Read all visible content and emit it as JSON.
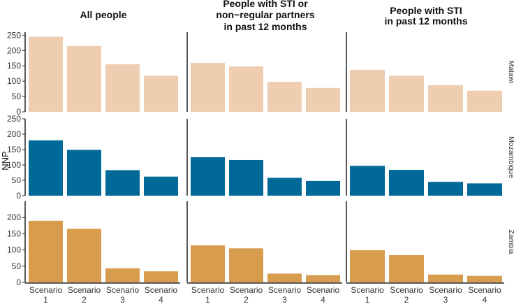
{
  "chart_data": {
    "type": "bar",
    "ylabel": "NNP",
    "columns": [
      "All people",
      "People with STI or non−regular partners in past 12 months",
      "People with STI in past 12 months"
    ],
    "column_title_lines": [
      [
        "All people"
      ],
      [
        "People with STI or",
        "non−regular partners",
        "in past 12 months"
      ],
      [
        "People with STI",
        "in past 12 months"
      ]
    ],
    "rows": [
      "Malawi",
      "Mozambique",
      "Zambia"
    ],
    "categories": [
      "Scenario 1",
      "Scenario 2",
      "Scenario 3",
      "Scenario 4"
    ],
    "category_lines": [
      [
        "Scenario",
        "1"
      ],
      [
        "Scenario",
        "2"
      ],
      [
        "Scenario",
        "3"
      ],
      [
        "Scenario",
        "4"
      ]
    ],
    "ylim": {
      "Malawi": [
        0,
        260
      ],
      "Mozambique": [
        0,
        250
      ],
      "Zambia": [
        0,
        250
      ]
    },
    "yticks": {
      "Malawi": [
        0,
        50,
        100,
        150,
        200,
        250
      ],
      "Mozambique": [
        0,
        50,
        100,
        150,
        200,
        250
      ],
      "Zambia": [
        0,
        50,
        100,
        150,
        200
      ]
    },
    "colors": {
      "Malawi": "#efcdb1",
      "Mozambique": "#006998",
      "Zambia": "#d89c4f"
    },
    "panels": [
      {
        "row": "Malawi",
        "column": "All people",
        "values": [
          245,
          215,
          155,
          118
        ]
      },
      {
        "row": "Malawi",
        "column": "People with STI or non−regular partners in past 12 months",
        "values": [
          160,
          148,
          98,
          78
        ]
      },
      {
        "row": "Malawi",
        "column": "People with STI in past 12 months",
        "values": [
          137,
          118,
          87,
          69
        ]
      },
      {
        "row": "Mozambique",
        "column": "All people",
        "values": [
          180,
          149,
          83,
          62
        ]
      },
      {
        "row": "Mozambique",
        "column": "People with STI or non−regular partners in past 12 months",
        "values": [
          125,
          116,
          58,
          48
        ]
      },
      {
        "row": "Mozambique",
        "column": "People with STI in past 12 months",
        "values": [
          97,
          84,
          45,
          40
        ]
      },
      {
        "row": "Zambia",
        "column": "All people",
        "values": [
          190,
          165,
          43,
          34
        ]
      },
      {
        "row": "Zambia",
        "column": "People with STI or non−regular partners in past 12 months",
        "values": [
          114,
          105,
          27,
          22
        ]
      },
      {
        "row": "Zambia",
        "column": "People with STI in past 12 months",
        "values": [
          99,
          84,
          24,
          20
        ]
      }
    ]
  }
}
